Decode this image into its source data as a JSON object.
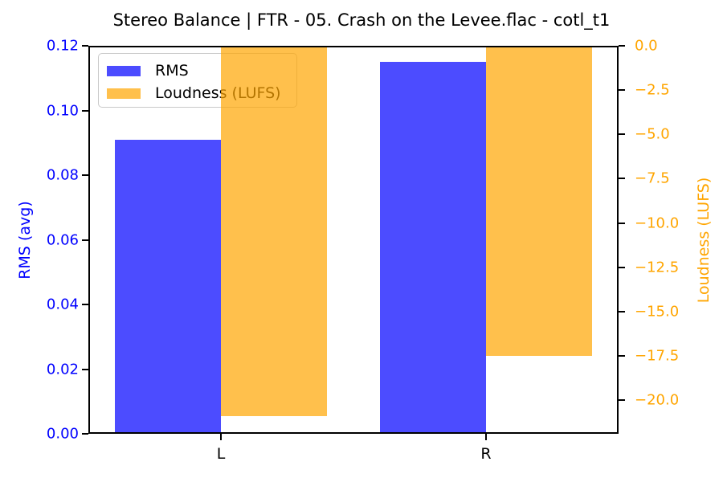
{
  "chart_data": {
    "type": "bar",
    "title": "Stereo Balance | FTR - 05. Crash on the Levee.flac - cotl_t1",
    "categories": [
      "L",
      "R"
    ],
    "series": [
      {
        "name": "RMS",
        "axis": "left",
        "color": "#0000ff",
        "alpha": 0.7,
        "values": [
          0.091,
          0.115
        ]
      },
      {
        "name": "Loudness (LUFS)",
        "axis": "right",
        "color": "#ffa500",
        "alpha": 0.7,
        "values": [
          -20.9,
          -17.5
        ]
      }
    ],
    "left_axis": {
      "label": "RMS (avg)",
      "color": "#0000ff",
      "range": [
        0,
        0.12
      ],
      "tick_labels": [
        "0.00",
        "0.02",
        "0.04",
        "0.06",
        "0.08",
        "0.10",
        "0.12"
      ],
      "tick_values": [
        0,
        0.02,
        0.04,
        0.06,
        0.08,
        0.1,
        0.12
      ]
    },
    "right_axis": {
      "label": "Loudness (LUFS)",
      "color": "#ffa500",
      "range": [
        -21.9,
        0
      ],
      "tick_labels": [
        "0.0",
        "−2.5",
        "−5.0",
        "−7.5",
        "−10.0",
        "−12.5",
        "−15.0",
        "−17.5",
        "−20.0"
      ],
      "tick_values": [
        0,
        -2.5,
        -5,
        -7.5,
        -10,
        -12.5,
        -15,
        -17.5,
        -20
      ]
    },
    "legend": {
      "position": "upper-left",
      "entries": [
        "RMS",
        "Loudness (LUFS)"
      ]
    },
    "grid": false,
    "background": "#ffffff"
  }
}
